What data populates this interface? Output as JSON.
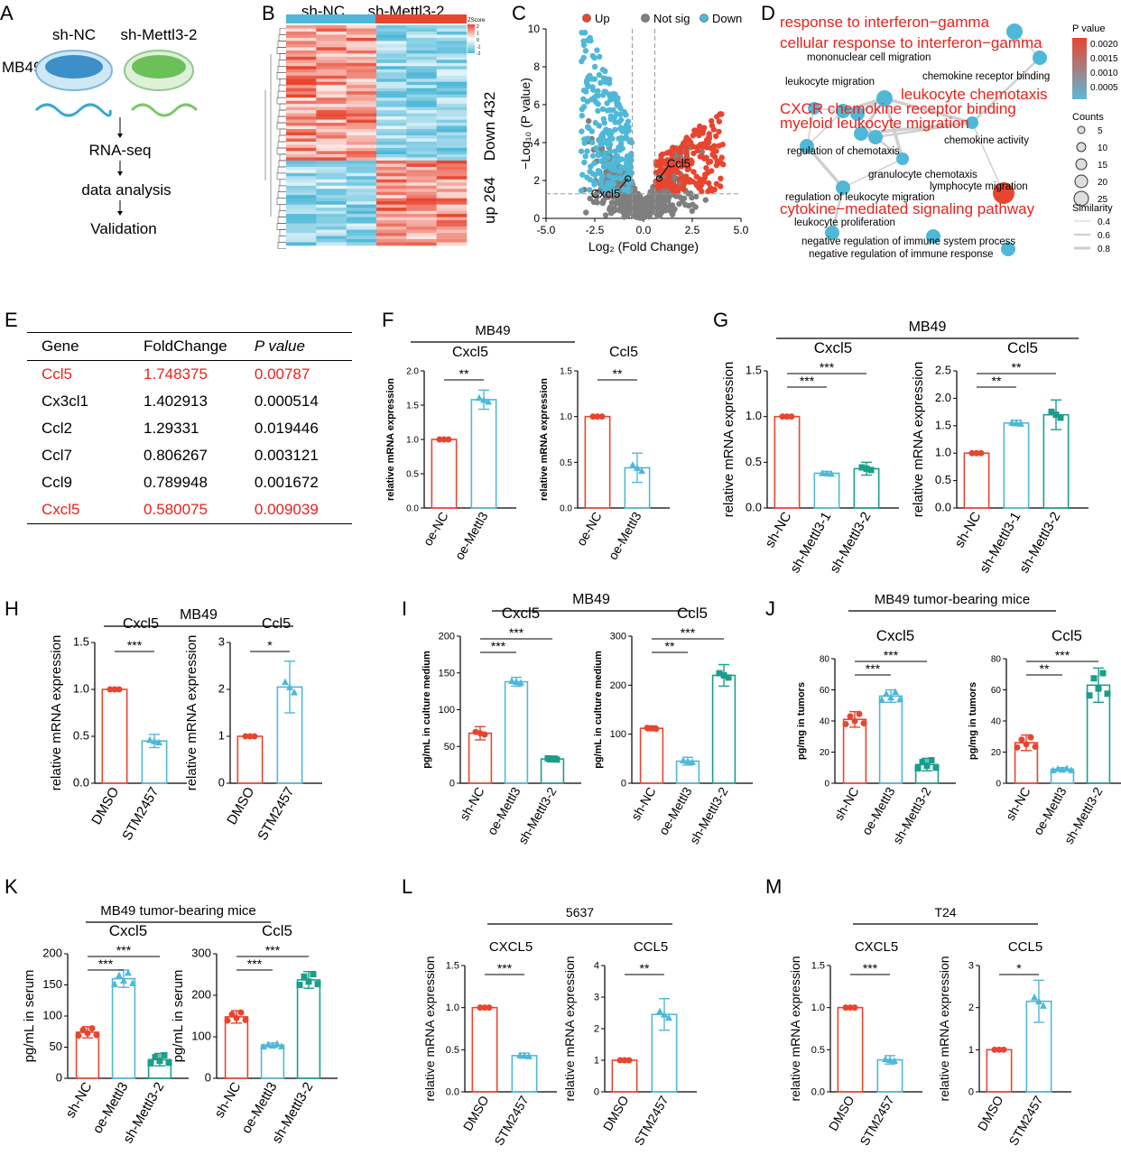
{
  "panel_labels": [
    "A",
    "B",
    "C",
    "D",
    "E",
    "F",
    "G",
    "H",
    "I",
    "J",
    "K",
    "L",
    "M"
  ],
  "colors": {
    "red": "#e8452f",
    "blue": "#4fb8d8",
    "teal": "#1a9e8a",
    "grey": "#7f7f7f",
    "sig_red": "#e8221c"
  },
  "panelA": {
    "groups": [
      "sh-NC",
      "sh-Mettl3-2"
    ],
    "cell": "MB49",
    "steps": [
      "RNA-seq",
      "data analysis",
      "Validation"
    ]
  },
  "panelB": {
    "groups": [
      "sh-NC",
      "sh-Mettl3-2"
    ],
    "side": [
      "Down 432",
      "up 264"
    ],
    "scale_title": "ZScore",
    "scale_ticks": [
      "2",
      "1",
      "0",
      "-1",
      "-2"
    ]
  },
  "panelC": {
    "legend": [
      "Up",
      "Not sig",
      "Down"
    ],
    "xlabel": "Log₂ (Fold Change)",
    "ylabel": "−Log₁₀ (P value)",
    "xticks": [
      "-5.0",
      "-2.5",
      "0.0",
      "2.5",
      "5.0"
    ],
    "yticks": [
      "0",
      "2",
      "4",
      "6",
      "8",
      "10"
    ],
    "annotations": [
      "Ccl5",
      "Cxcl5"
    ]
  },
  "panelD": {
    "red_terms": [
      "response to interferon−gamma",
      "cellular response to interferon−gamma",
      "leukocyte chemotaxis",
      "CXCR chemokine receptor binding",
      "myeloid leukocyte migration",
      "cytokine−mediated signaling pathway"
    ],
    "black_terms": [
      "mononuclear cell migration",
      "chemokine receptor binding",
      "leukocyte migration",
      "chemokine activity",
      "regulation of chemotaxis",
      "granulocyte chemotaxis",
      "regulation of leukocyte migration",
      "lymphocyte migration",
      "leukocyte proliferation",
      "negative regulation of immune system process",
      "negative regulation of immune response"
    ],
    "pvalue_title": "P value",
    "pvalue_ticks": [
      "0.0020",
      "0.0015",
      "0.0010",
      "0.0005"
    ],
    "counts_title": "Counts",
    "counts": [
      "5",
      "10",
      "15",
      "20",
      "25"
    ],
    "similarity_title": "Similarity",
    "similarity": [
      "0.4",
      "0.6",
      "0.8"
    ]
  },
  "panelE": {
    "headers": [
      "Gene",
      "FoldChange",
      "P value"
    ],
    "rows": [
      {
        "gene": "Ccl5",
        "fc": "1.748375",
        "p": "0.00787",
        "hl": true
      },
      {
        "gene": "Cx3cl1",
        "fc": "1.402913",
        "p": "0.000514",
        "hl": false
      },
      {
        "gene": "Ccl2",
        "fc": "1.29331",
        "p": "0.019446",
        "hl": false
      },
      {
        "gene": "Ccl7",
        "fc": "0.806267",
        "p": "0.003121",
        "hl": false
      },
      {
        "gene": "Ccl9",
        "fc": "0.789948",
        "p": "0.001672",
        "hl": false
      },
      {
        "gene": "Cxcl5",
        "fc": "0.580075",
        "p": "0.009039",
        "hl": true
      }
    ]
  },
  "chart_data": [
    {
      "id": "F1",
      "type": "bar",
      "group_title": "MB49",
      "title": "Cxcl5",
      "ylabel": "relative mRNA expression",
      "categories": [
        "oe-NC",
        "oe-Mettl3"
      ],
      "values": [
        1.0,
        1.58
      ],
      "errors": [
        0,
        0.14
      ],
      "ylim": [
        0,
        2.0
      ],
      "yticks": [
        0,
        0.5,
        1.0,
        1.5,
        2.0
      ],
      "yticklabels": [
        "0.0",
        "0.5",
        "1.0",
        "1.5",
        "2.0"
      ],
      "sig": [
        {
          "from": 0,
          "to": 1,
          "label": "**"
        }
      ]
    },
    {
      "id": "F2",
      "type": "bar",
      "title": "Ccl5",
      "ylabel": "relative mRNA expression",
      "categories": [
        "oe-NC",
        "oe-Mettl3"
      ],
      "values": [
        1.0,
        0.44
      ],
      "errors": [
        0,
        0.16
      ],
      "ylim": [
        0,
        1.5
      ],
      "yticks": [
        0,
        0.5,
        1.0,
        1.5
      ],
      "yticklabels": [
        "0.0",
        "0.5",
        "1.0",
        "1.5"
      ],
      "sig": [
        {
          "from": 0,
          "to": 1,
          "label": "**"
        }
      ]
    },
    {
      "id": "G1",
      "type": "bar",
      "group_title": "MB49",
      "title": "Cxcl5",
      "ylabel": "relative mRNA expression",
      "categories": [
        "sh-NC",
        "sh-Mettl3-1",
        "sh-Mettl3-2"
      ],
      "values": [
        1.0,
        0.38,
        0.43
      ],
      "errors": [
        0,
        0.02,
        0.07
      ],
      "ylim": [
        0,
        1.5
      ],
      "yticks": [
        0,
        0.5,
        1.0,
        1.5
      ],
      "yticklabels": [
        "0.0",
        "0.5",
        "1.0",
        "1.5"
      ],
      "sig": [
        {
          "from": 0,
          "to": 1,
          "label": "***"
        },
        {
          "from": 0,
          "to": 2,
          "label": "***"
        }
      ]
    },
    {
      "id": "G2",
      "type": "bar",
      "title": "Ccl5",
      "ylabel": "relative mRNA expression",
      "categories": [
        "sh-NC",
        "sh-Mettl3-1",
        "sh-Mettl3-2"
      ],
      "values": [
        1.0,
        1.55,
        1.7
      ],
      "errors": [
        0,
        0.05,
        0.27
      ],
      "ylim": [
        0,
        2.5
      ],
      "yticks": [
        0,
        0.5,
        1.0,
        1.5,
        2.0,
        2.5
      ],
      "yticklabels": [
        "0.0",
        "0.5",
        "1.0",
        "1.5",
        "2.0",
        "2.5"
      ],
      "sig": [
        {
          "from": 0,
          "to": 1,
          "label": "**"
        },
        {
          "from": 0,
          "to": 2,
          "label": "**"
        }
      ]
    },
    {
      "id": "H1",
      "type": "bar",
      "group_title": "MB49",
      "title": "Cxcl5",
      "ylabel": "relative mRNA expression",
      "categories": [
        "DMSO",
        "STM2457"
      ],
      "values": [
        1.0,
        0.45
      ],
      "errors": [
        0,
        0.07
      ],
      "ylim": [
        0,
        1.5
      ],
      "yticks": [
        0,
        0.5,
        1.0,
        1.5
      ],
      "yticklabels": [
        "0.0",
        "0.5",
        "1.0",
        "1.5"
      ],
      "sig": [
        {
          "from": 0,
          "to": 1,
          "label": "***"
        }
      ]
    },
    {
      "id": "H2",
      "type": "bar",
      "title": "Ccl5",
      "ylabel": "relative mRNA expression",
      "categories": [
        "DMSO",
        "STM2457"
      ],
      "values": [
        1.0,
        2.05
      ],
      "errors": [
        0,
        0.55
      ],
      "ylim": [
        0,
        3
      ],
      "yticks": [
        0,
        1,
        2,
        3
      ],
      "yticklabels": [
        "0",
        "1",
        "2",
        "3"
      ],
      "sig": [
        {
          "from": 0,
          "to": 1,
          "label": "*"
        }
      ]
    },
    {
      "id": "I1",
      "type": "bar",
      "group_title": "MB49",
      "title": "Cxcl5",
      "ylabel": "pg/mL in culture medium",
      "categories": [
        "sh-NC",
        "oe-Mettl3",
        "sh-Mettl3-2"
      ],
      "values": [
        68,
        138,
        33
      ],
      "errors": [
        9,
        6,
        4
      ],
      "ylim": [
        0,
        200
      ],
      "yticks": [
        0,
        50,
        100,
        150,
        200
      ],
      "yticklabels": [
        "0",
        "50",
        "100",
        "150",
        "200"
      ],
      "sig": [
        {
          "from": 0,
          "to": 1,
          "label": "***"
        },
        {
          "from": 0,
          "to": 2,
          "label": "***"
        }
      ]
    },
    {
      "id": "I2",
      "type": "bar",
      "title": "Ccl5",
      "ylabel": "pg/mL in culture medium",
      "categories": [
        "sh-NC",
        "oe-Mettl3",
        "sh-Mettl3-2"
      ],
      "values": [
        112,
        45,
        220
      ],
      "errors": [
        5,
        8,
        22
      ],
      "ylim": [
        0,
        300
      ],
      "yticks": [
        0,
        100,
        200,
        300
      ],
      "yticklabels": [
        "0",
        "100",
        "200",
        "300"
      ],
      "sig": [
        {
          "from": 0,
          "to": 1,
          "label": "**"
        },
        {
          "from": 0,
          "to": 2,
          "label": "***"
        }
      ]
    },
    {
      "id": "J1",
      "type": "bar",
      "group_title": "MB49 tumor-bearing mice",
      "title": "Cxcl5",
      "ylabel": "pg/mg in tumors",
      "categories": [
        "sh-NC",
        "oe-Mettl3",
        "sh-Mettl3-2"
      ],
      "values": [
        41,
        56,
        12
      ],
      "errors": [
        5,
        4,
        4
      ],
      "ylim": [
        0,
        80
      ],
      "yticks": [
        0,
        20,
        40,
        60,
        80
      ],
      "yticklabels": [
        "0",
        "20",
        "40",
        "60",
        "80"
      ],
      "sig": [
        {
          "from": 0,
          "to": 1,
          "label": "***"
        },
        {
          "from": 0,
          "to": 2,
          "label": "***"
        }
      ]
    },
    {
      "id": "J2",
      "type": "bar",
      "title": "Ccl5",
      "ylabel": "pg/mg in tumors",
      "categories": [
        "sh-NC",
        "oe-Mettl3",
        "sh-Mettl3-2"
      ],
      "values": [
        26,
        9,
        63
      ],
      "errors": [
        5,
        1,
        11
      ],
      "ylim": [
        0,
        80
      ],
      "yticks": [
        0,
        20,
        40,
        60,
        80
      ],
      "yticklabels": [
        "0",
        "20",
        "40",
        "60",
        "80"
      ],
      "sig": [
        {
          "from": 0,
          "to": 1,
          "label": "**"
        },
        {
          "from": 0,
          "to": 2,
          "label": "***"
        }
      ]
    },
    {
      "id": "K1",
      "type": "bar",
      "group_title": "MB49 tumor-bearing mice",
      "title": "Cxcl5",
      "ylabel": "pg/mL in serum",
      "categories": [
        "sh-NC",
        "oe-Mettl3",
        "sh-Mettl3-2"
      ],
      "values": [
        74,
        160,
        30
      ],
      "errors": [
        9,
        14,
        10
      ],
      "ylim": [
        0,
        200
      ],
      "yticks": [
        0,
        50,
        100,
        150,
        200
      ],
      "yticklabels": [
        "0",
        "50",
        "100",
        "150",
        "200"
      ],
      "sig": [
        {
          "from": 0,
          "to": 1,
          "label": "***"
        },
        {
          "from": 0,
          "to": 2,
          "label": "***"
        }
      ]
    },
    {
      "id": "K2",
      "type": "bar",
      "title": "Ccl5",
      "ylabel": "pg/mL in serum",
      "categories": [
        "sh-NC",
        "oe-Mettl3",
        "sh-Mettl3-2"
      ],
      "values": [
        148,
        80,
        237
      ],
      "errors": [
        15,
        5,
        20
      ],
      "ylim": [
        0,
        300
      ],
      "yticks": [
        0,
        100,
        200,
        300
      ],
      "yticklabels": [
        "0",
        "100",
        "200",
        "300"
      ],
      "sig": [
        {
          "from": 0,
          "to": 1,
          "label": "***"
        },
        {
          "from": 0,
          "to": 2,
          "label": "***"
        }
      ]
    },
    {
      "id": "L1",
      "type": "bar",
      "group_title": "5637",
      "title": "CXCL5",
      "ylabel": "relative mRNA expression",
      "categories": [
        "DMSO",
        "STM2457"
      ],
      "values": [
        1.0,
        0.43
      ],
      "errors": [
        0,
        0.03
      ],
      "ylim": [
        0,
        1.5
      ],
      "yticks": [
        0,
        0.5,
        1.0,
        1.5
      ],
      "yticklabels": [
        "0.0",
        "0.5",
        "1.0",
        "1.5"
      ],
      "sig": [
        {
          "from": 0,
          "to": 1,
          "label": "***"
        }
      ]
    },
    {
      "id": "L2",
      "type": "bar",
      "title": "CCL5",
      "ylabel": "relative mRNA expression",
      "categories": [
        "DMSO",
        "STM2457"
      ],
      "values": [
        1.0,
        2.45
      ],
      "errors": [
        0,
        0.5
      ],
      "ylim": [
        0,
        4
      ],
      "yticks": [
        0,
        1,
        2,
        3,
        4
      ],
      "yticklabels": [
        "0",
        "1",
        "2",
        "3",
        "4"
      ],
      "sig": [
        {
          "from": 0,
          "to": 1,
          "label": "**"
        }
      ]
    },
    {
      "id": "M1",
      "type": "bar",
      "group_title": "T24",
      "title": "CXCL5",
      "ylabel": "relative mRNA expression",
      "categories": [
        "DMSO",
        "STM2457"
      ],
      "values": [
        1.0,
        0.38
      ],
      "errors": [
        0,
        0.05
      ],
      "ylim": [
        0,
        1.5
      ],
      "yticks": [
        0,
        0.5,
        1.0,
        1.5
      ],
      "yticklabels": [
        "0.0",
        "0.5",
        "1.0",
        "1.5"
      ],
      "sig": [
        {
          "from": 0,
          "to": 1,
          "label": "***"
        }
      ]
    },
    {
      "id": "M2",
      "type": "bar",
      "title": "CCL5",
      "ylabel": "relative mRNA expression",
      "categories": [
        "DMSO",
        "STM2457"
      ],
      "values": [
        1.0,
        2.15
      ],
      "errors": [
        0,
        0.5
      ],
      "ylim": [
        0,
        3
      ],
      "yticks": [
        0,
        1,
        2,
        3
      ],
      "yticklabels": [
        "0",
        "1",
        "2",
        "3"
      ],
      "sig": [
        {
          "from": 0,
          "to": 1,
          "label": "*"
        }
      ]
    }
  ]
}
